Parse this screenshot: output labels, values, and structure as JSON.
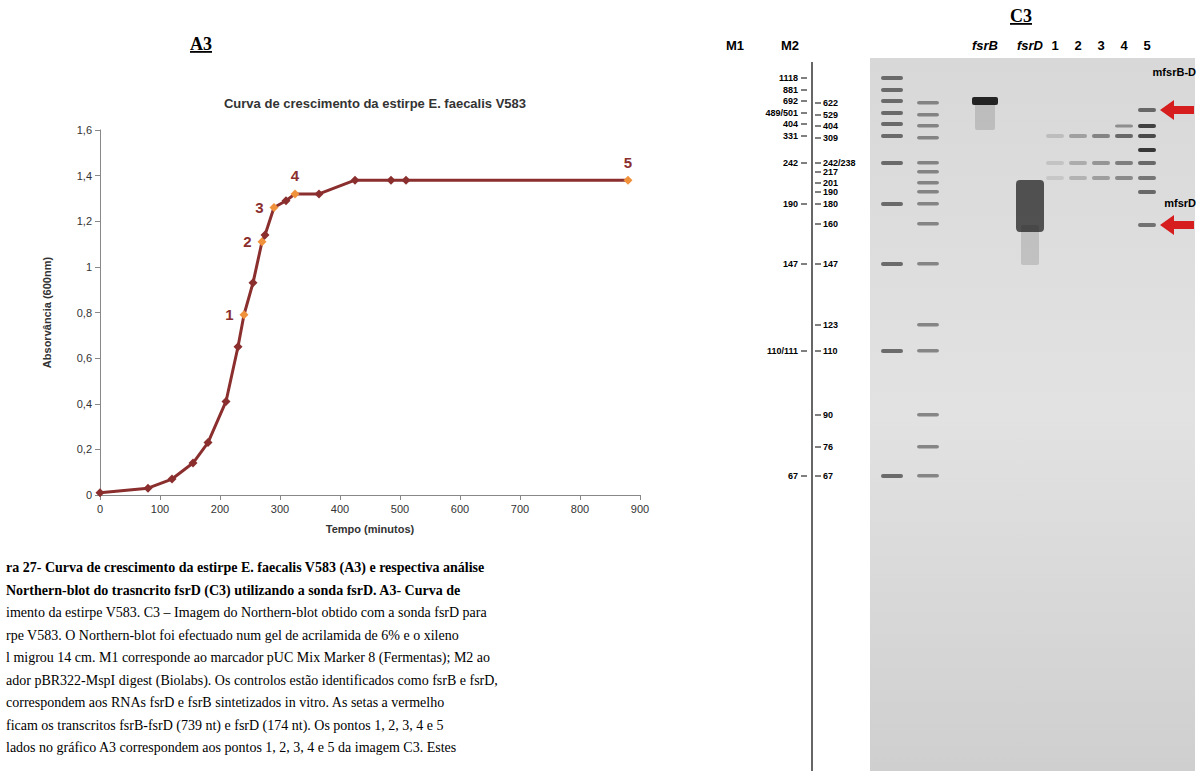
{
  "chart_data": {
    "type": "line",
    "title": "Curva de crescimento da estirpe E. faecalis V583",
    "x_label": "Tempo (minutos)",
    "y_label": "Absorvância (600nm)",
    "x": [
      0,
      80,
      120,
      155,
      180,
      210,
      230,
      240,
      255,
      270,
      275,
      290,
      310,
      325,
      365,
      425,
      485,
      510,
      880
    ],
    "series": [
      {
        "values": [
          0.01,
          0.03,
          0.07,
          0.14,
          0.23,
          0.41,
          0.65,
          0.79,
          0.93,
          1.11,
          1.14,
          1.26,
          1.29,
          1.32,
          1.32,
          1.38,
          1.38,
          1.38,
          1.38
        ],
        "color": "#8B2E2E",
        "colors": [
          "#8B2E2E",
          "#8B2E2E",
          "#8B2E2E",
          "#8B2E2E",
          "#8B2E2E",
          "#8B2E2E",
          "#8B2E2E",
          "#F0923C",
          "#8B2E2E",
          "#F0923C",
          "#8B2E2E",
          "#F0923C",
          "#8B2E2E",
          "#F0923C",
          "#8B2E2E",
          "#8B2E2E",
          "#8B2E2E",
          "#8B2E2E",
          "#F0923C"
        ],
        "marker": "diamond"
      }
    ],
    "annotations": [
      {
        "x": 240,
        "y": 0.79,
        "text": "1"
      },
      {
        "x": 270,
        "y": 1.11,
        "text": "2"
      },
      {
        "x": 290,
        "y": 1.26,
        "text": "3"
      },
      {
        "x": 325,
        "y": 1.32,
        "text": "4"
      },
      {
        "x": 880,
        "y": 1.38,
        "text": "5"
      }
    ],
    "xlim": [
      0,
      900
    ],
    "xticks": [
      0,
      100,
      200,
      300,
      400,
      500,
      600,
      700,
      800,
      900
    ],
    "ylim": [
      0,
      1.6
    ],
    "yticks": [
      0,
      {
        "value": 0.2,
        "label": "0,2"
      },
      {
        "value": 0.4,
        "label": "0,4"
      },
      {
        "value": 0.6,
        "label": "0,6"
      },
      {
        "value": 0.8,
        "label": "0,8"
      },
      1,
      {
        "value": 1.2,
        "label": "1,2"
      },
      {
        "value": 1.4,
        "label": "1,4"
      },
      {
        "value": 1.6,
        "label": "1,6"
      }
    ],
    "grid": false
  },
  "panel_labels": {
    "chart": "A3",
    "blot": "C3"
  },
  "blot": {
    "marker_headers": [
      "M1",
      "M2"
    ],
    "lane_labels": [
      "fsrB",
      "fsrD",
      "1",
      "2",
      "3",
      "4",
      "5"
    ],
    "m1_sizes": [
      "1118",
      "881",
      "692",
      "489/501",
      "404",
      "331",
      "242",
      "190",
      "147",
      "110/111",
      "67"
    ],
    "m2_sizes": [
      "622",
      "529",
      "404",
      "309",
      "242/238",
      "217",
      "201",
      "190",
      "180",
      "160",
      "147",
      "123",
      "110",
      "90",
      "76",
      "67"
    ],
    "arrows": [
      "mfsrB-D",
      "mfsrD"
    ]
  },
  "caption": [
    "ra 27- Curva de crescimento da estirpe E. faecalis V583 (A3) e respectiva análise",
    "Northern-blot do trasncrito fsrD (C3) utilizando a sonda fsrD. A3- Curva de",
    "imento da estirpe V583. C3 – Imagem do Northern-blot obtido com a sonda fsrD para",
    "rpe V583. O Northern-blot foi efectuado num gel de acrilamida de 6% e o xileno",
    "l migrou 14 cm. M1 corresponde ao marcador pUC Mix Marker 8 (Fermentas); M2 ao",
    "ador pBR322-MspI digest (Biolabs). Os controlos estão identificados como fsrB e fsrD,",
    "correspondem aos RNAs fsrD e fsrB sintetizados in vitro. As setas a vermelho",
    "ficam os transcritos fsrB-fsrD (739 nt) e fsrD (174 nt). Os pontos 1, 2, 3, 4 e 5",
    "lados no gráfico A3 correspondem aos pontos 1, 2, 3, 4 e 5 da imagem C3. Estes"
  ]
}
